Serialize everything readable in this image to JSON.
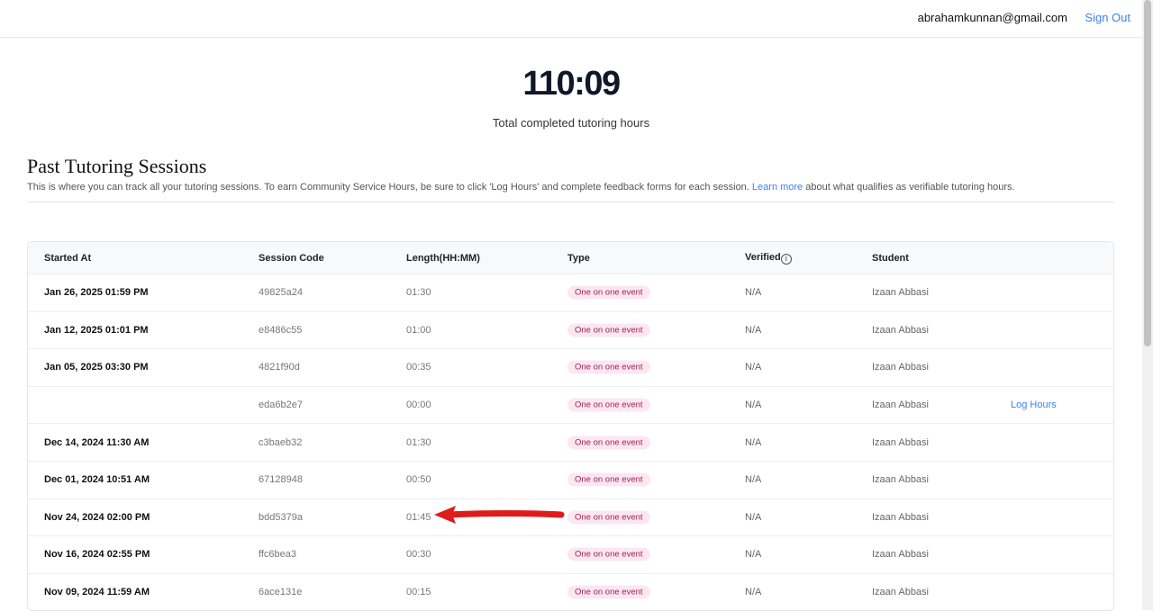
{
  "header": {
    "email": "abrahamkunnan@gmail.com",
    "sign_out": "Sign Out"
  },
  "summary": {
    "total_hours": "110:09",
    "label": "Total completed tutoring hours"
  },
  "section": {
    "title": "Past Tutoring Sessions",
    "description": "This is where you can track all your tutoring sessions. To earn Community Service Hours, be sure to click 'Log Hours' and complete feedback forms for each session. ",
    "learn_more": "Learn more",
    "description_end": " about what qualifies as verifiable tutoring hours."
  },
  "table": {
    "columns": [
      "Started At",
      "Session Code",
      "Length(HH:MM)",
      "Type",
      "Verified",
      "Student"
    ],
    "verified_info_icon": "info-circle-icon",
    "rows": [
      {
        "started": "Jan 26, 2025 01:59 PM",
        "code": "49825a24",
        "length": "01:30",
        "type": "One on one event",
        "verified": "N/A",
        "student": "Izaan Abbasi",
        "action": ""
      },
      {
        "started": "Jan 12, 2025 01:01 PM",
        "code": "e8486c55",
        "length": "01:00",
        "type": "One on one event",
        "verified": "N/A",
        "student": "Izaan Abbasi",
        "action": ""
      },
      {
        "started": "Jan 05, 2025 03:30 PM",
        "code": "4821f90d",
        "length": "00:35",
        "type": "One on one event",
        "verified": "N/A",
        "student": "Izaan Abbasi",
        "action": ""
      },
      {
        "started": "",
        "code": "eda6b2e7",
        "length": "00:00",
        "type": "One on one event",
        "verified": "N/A",
        "student": "Izaan Abbasi",
        "action": "Log Hours"
      },
      {
        "started": "Dec 14, 2024 11:30 AM",
        "code": "c3baeb32",
        "length": "01:30",
        "type": "One on one event",
        "verified": "N/A",
        "student": "Izaan Abbasi",
        "action": ""
      },
      {
        "started": "Dec 01, 2024 10:51 AM",
        "code": "67128948",
        "length": "00:50",
        "type": "One on one event",
        "verified": "N/A",
        "student": "Izaan Abbasi",
        "action": ""
      },
      {
        "started": "Nov 24, 2024 02:00 PM",
        "code": "bdd5379a",
        "length": "01:45",
        "type": "One on one event",
        "verified": "N/A",
        "student": "Izaan Abbasi",
        "action": ""
      },
      {
        "started": "Nov 16, 2024 02:55 PM",
        "code": "ffc6bea3",
        "length": "00:30",
        "type": "One on one event",
        "verified": "N/A",
        "student": "Izaan Abbasi",
        "action": ""
      },
      {
        "started": "Nov 09, 2024 11:59 AM",
        "code": "6ace131e",
        "length": "00:15",
        "type": "One on one event",
        "verified": "N/A",
        "student": "Izaan Abbasi",
        "action": ""
      }
    ]
  },
  "annotation": {
    "arrow_color": "#e01b1b",
    "points_to_row": 6
  },
  "colors": {
    "accent": "#3b82f6",
    "badge_bg": "#fce7f0",
    "badge_text": "#a3224f"
  }
}
